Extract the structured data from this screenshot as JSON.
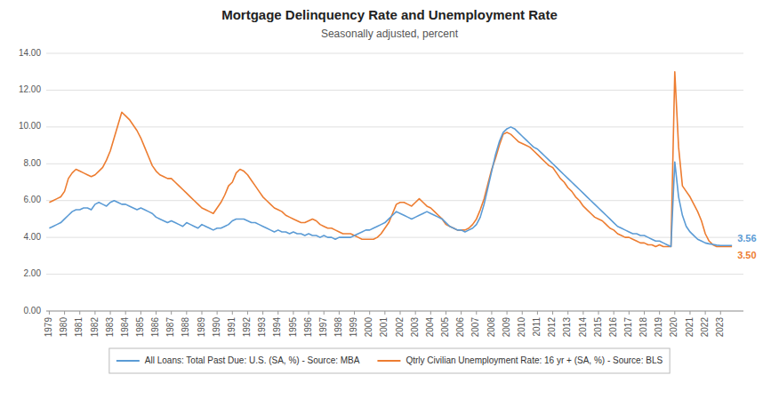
{
  "chart_data": {
    "type": "line",
    "title": "Mortgage Delinquency Rate and Unemployment Rate",
    "subtitle": "Seasonally adjusted, percent",
    "x": [
      1979,
      1979.25,
      1979.5,
      1979.75,
      1980,
      1980.25,
      1980.5,
      1980.75,
      1981,
      1981.25,
      1981.5,
      1981.75,
      1982,
      1982.25,
      1982.5,
      1982.75,
      1983,
      1983.25,
      1983.5,
      1983.75,
      1984,
      1984.25,
      1984.5,
      1984.75,
      1985,
      1985.25,
      1985.5,
      1985.75,
      1986,
      1986.25,
      1986.5,
      1986.75,
      1987,
      1987.25,
      1987.5,
      1987.75,
      1988,
      1988.25,
      1988.5,
      1988.75,
      1989,
      1989.25,
      1989.5,
      1989.75,
      1990,
      1990.25,
      1990.5,
      1990.75,
      1991,
      1991.25,
      1991.5,
      1991.75,
      1992,
      1992.25,
      1992.5,
      1992.75,
      1993,
      1993.25,
      1993.5,
      1993.75,
      1994,
      1994.25,
      1994.5,
      1994.75,
      1995,
      1995.25,
      1995.5,
      1995.75,
      1996,
      1996.25,
      1996.5,
      1996.75,
      1997,
      1997.25,
      1997.5,
      1997.75,
      1998,
      1998.25,
      1998.5,
      1998.75,
      1999,
      1999.25,
      1999.5,
      1999.75,
      2000,
      2000.25,
      2000.5,
      2000.75,
      2001,
      2001.25,
      2001.5,
      2001.75,
      2002,
      2002.25,
      2002.5,
      2002.75,
      2003,
      2003.25,
      2003.5,
      2003.75,
      2004,
      2004.25,
      2004.5,
      2004.75,
      2005,
      2005.25,
      2005.5,
      2005.75,
      2006,
      2006.25,
      2006.5,
      2006.75,
      2007,
      2007.25,
      2007.5,
      2007.75,
      2008,
      2008.25,
      2008.5,
      2008.75,
      2009,
      2009.25,
      2009.5,
      2009.75,
      2010,
      2010.25,
      2010.5,
      2010.75,
      2011,
      2011.25,
      2011.5,
      2011.75,
      2012,
      2012.25,
      2012.5,
      2012.75,
      2013,
      2013.25,
      2013.5,
      2013.75,
      2014,
      2014.25,
      2014.5,
      2014.75,
      2015,
      2015.25,
      2015.5,
      2015.75,
      2016,
      2016.25,
      2016.5,
      2016.75,
      2017,
      2017.25,
      2017.5,
      2017.75,
      2018,
      2018.25,
      2018.5,
      2018.75,
      2019,
      2019.25,
      2019.5,
      2019.75,
      2020,
      2020.25,
      2020.5,
      2020.75,
      2021,
      2021.25,
      2021.5,
      2021.75,
      2022,
      2022.25,
      2022.5,
      2022.75,
      2023,
      2023.25,
      2023.5,
      2023.75
    ],
    "series": [
      {
        "name": "All Loans: Total Past Due: U.S. (SA, %) - Source: MBA",
        "color": "#5B9BD5",
        "values": [
          4.5,
          4.6,
          4.7,
          4.8,
          5.0,
          5.2,
          5.4,
          5.5,
          5.5,
          5.6,
          5.6,
          5.5,
          5.8,
          5.9,
          5.8,
          5.7,
          5.9,
          6.0,
          5.9,
          5.8,
          5.8,
          5.7,
          5.6,
          5.5,
          5.6,
          5.5,
          5.4,
          5.3,
          5.1,
          5.0,
          4.9,
          4.8,
          4.9,
          4.8,
          4.7,
          4.6,
          4.8,
          4.7,
          4.6,
          4.5,
          4.7,
          4.6,
          4.5,
          4.4,
          4.5,
          4.5,
          4.6,
          4.7,
          4.9,
          5.0,
          5.0,
          5.0,
          4.9,
          4.8,
          4.8,
          4.7,
          4.6,
          4.5,
          4.4,
          4.3,
          4.4,
          4.3,
          4.3,
          4.2,
          4.3,
          4.2,
          4.2,
          4.1,
          4.2,
          4.1,
          4.1,
          4.0,
          4.1,
          4.0,
          4.0,
          3.9,
          4.0,
          4.0,
          4.0,
          4.0,
          4.1,
          4.2,
          4.3,
          4.4,
          4.4,
          4.5,
          4.6,
          4.7,
          4.8,
          5.0,
          5.2,
          5.4,
          5.3,
          5.2,
          5.1,
          5.0,
          5.1,
          5.2,
          5.3,
          5.4,
          5.3,
          5.2,
          5.1,
          5.0,
          4.8,
          4.6,
          4.5,
          4.4,
          4.4,
          4.3,
          4.4,
          4.5,
          4.7,
          5.1,
          5.8,
          6.7,
          7.6,
          8.5,
          9.2,
          9.7,
          9.9,
          10.0,
          9.9,
          9.7,
          9.5,
          9.3,
          9.1,
          8.9,
          8.8,
          8.6,
          8.4,
          8.2,
          8.0,
          7.8,
          7.6,
          7.4,
          7.2,
          7.0,
          6.8,
          6.6,
          6.4,
          6.2,
          6.0,
          5.8,
          5.6,
          5.4,
          5.2,
          5.0,
          4.8,
          4.6,
          4.5,
          4.4,
          4.3,
          4.2,
          4.2,
          4.1,
          4.1,
          4.0,
          3.9,
          3.8,
          3.8,
          3.7,
          3.6,
          3.5,
          8.1,
          6.2,
          5.2,
          4.6,
          4.3,
          4.1,
          3.9,
          3.8,
          3.7,
          3.65,
          3.62,
          3.58,
          3.56,
          3.56,
          3.56,
          3.56
        ]
      },
      {
        "name": "Qtrly Civilian Unemployment Rate: 16 yr + (SA, %) - Source: BLS",
        "color": "#ED7D31",
        "values": [
          5.9,
          6.0,
          6.1,
          6.2,
          6.5,
          7.2,
          7.5,
          7.7,
          7.6,
          7.5,
          7.4,
          7.3,
          7.4,
          7.6,
          7.8,
          8.2,
          8.7,
          9.4,
          10.1,
          10.8,
          10.6,
          10.4,
          10.1,
          9.8,
          9.4,
          8.9,
          8.4,
          7.9,
          7.6,
          7.4,
          7.3,
          7.2,
          7.2,
          7.0,
          6.8,
          6.6,
          6.4,
          6.2,
          6.0,
          5.8,
          5.6,
          5.5,
          5.4,
          5.3,
          5.6,
          5.9,
          6.3,
          6.8,
          7.0,
          7.5,
          7.7,
          7.6,
          7.4,
          7.1,
          6.8,
          6.5,
          6.2,
          6.0,
          5.8,
          5.6,
          5.5,
          5.4,
          5.2,
          5.1,
          5.0,
          4.9,
          4.8,
          4.8,
          4.9,
          5.0,
          4.9,
          4.7,
          4.6,
          4.5,
          4.5,
          4.4,
          4.3,
          4.2,
          4.2,
          4.2,
          4.1,
          4.0,
          3.9,
          3.9,
          3.9,
          3.9,
          4.0,
          4.2,
          4.5,
          4.8,
          5.3,
          5.8,
          5.9,
          5.9,
          5.8,
          5.7,
          5.9,
          6.1,
          5.9,
          5.7,
          5.6,
          5.4,
          5.2,
          5.0,
          4.7,
          4.6,
          4.5,
          4.4,
          4.4,
          4.4,
          4.5,
          4.7,
          5.0,
          5.5,
          6.1,
          6.9,
          7.7,
          8.3,
          9.0,
          9.6,
          9.7,
          9.6,
          9.4,
          9.2,
          9.1,
          9.0,
          8.9,
          8.7,
          8.5,
          8.3,
          8.1,
          7.9,
          7.8,
          7.5,
          7.2,
          7.0,
          6.7,
          6.5,
          6.2,
          6.0,
          5.7,
          5.5,
          5.3,
          5.1,
          5.0,
          4.9,
          4.7,
          4.5,
          4.4,
          4.2,
          4.1,
          4.0,
          4.0,
          3.9,
          3.8,
          3.7,
          3.7,
          3.6,
          3.6,
          3.5,
          3.6,
          3.5,
          3.5,
          3.5,
          13.0,
          8.9,
          6.8,
          6.5,
          6.2,
          5.8,
          5.4,
          4.9,
          4.2,
          3.8,
          3.6,
          3.5,
          3.5,
          3.5,
          3.5,
          3.5
        ]
      }
    ],
    "annotations": [
      {
        "text": "3.56",
        "x": 2023.75,
        "y": 3.56
      },
      {
        "text": "3.50",
        "x": 2023.75,
        "y": 3.5
      }
    ],
    "xlim": [
      1978.8,
      2024.5
    ],
    "xticks": [
      1979,
      1980,
      1981,
      1982,
      1983,
      1984,
      1985,
      1986,
      1987,
      1988,
      1989,
      1990,
      1991,
      1992,
      1993,
      1994,
      1995,
      1996,
      1997,
      1998,
      1999,
      2000,
      2001,
      2002,
      2003,
      2004,
      2005,
      2006,
      2007,
      2008,
      2009,
      2010,
      2011,
      2012,
      2013,
      2014,
      2015,
      2016,
      2017,
      2018,
      2019,
      2020,
      2021,
      2022,
      2023
    ],
    "ylim": [
      0,
      14
    ],
    "yticks": [
      {
        "value": 0,
        "label": "0.00"
      },
      {
        "value": 2,
        "label": "2.00"
      },
      {
        "value": 4,
        "label": "4.00"
      },
      {
        "value": 6,
        "label": "6.00"
      },
      {
        "value": 8,
        "label": "8.00"
      },
      {
        "value": 10,
        "label": "10.00"
      },
      {
        "value": 12,
        "label": "12.00"
      },
      {
        "value": 14,
        "label": "14.00"
      }
    ],
    "grid": true,
    "legend": "bottom"
  }
}
